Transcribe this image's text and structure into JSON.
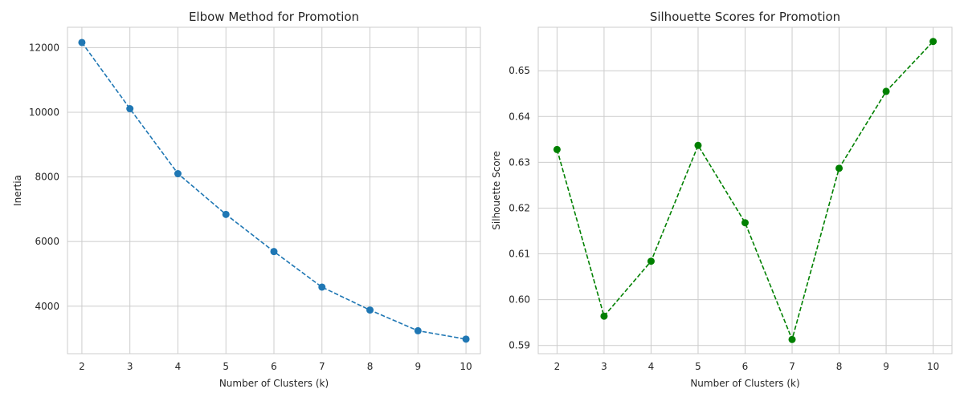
{
  "chart_data": [
    {
      "type": "line",
      "title": "Elbow Method for Promotion",
      "xlabel": "Number of Clusters (k)",
      "ylabel": "Inertia",
      "x": [
        2,
        3,
        4,
        5,
        6,
        7,
        8,
        9,
        10
      ],
      "xticks": [
        "2",
        "3",
        "4",
        "5",
        "6",
        "7",
        "8",
        "9",
        "10"
      ],
      "yticks": [
        "4000",
        "6000",
        "8000",
        "10000",
        "12000"
      ],
      "ytick_values": [
        4000,
        6000,
        8000,
        10000,
        12000
      ],
      "xlim": [
        1.7,
        10.3
      ],
      "ylim": [
        2530,
        12630
      ],
      "grid": true,
      "series": [
        {
          "values": [
            12160,
            10110,
            8100,
            6840,
            5690,
            4590,
            3880,
            3240,
            2980
          ],
          "color": "#1f77b4",
          "linestyle": "dashed",
          "marker": "circle"
        }
      ]
    },
    {
      "type": "line",
      "title": "Silhouette Scores for Promotion",
      "xlabel": "Number of Clusters (k)",
      "ylabel": "Silhouette Score",
      "x": [
        2,
        3,
        4,
        5,
        6,
        7,
        8,
        9,
        10
      ],
      "xticks": [
        "2",
        "3",
        "4",
        "5",
        "6",
        "7",
        "8",
        "9",
        "10"
      ],
      "yticks": [
        "0.59",
        "0.60",
        "0.61",
        "0.62",
        "0.63",
        "0.64",
        "0.65"
      ],
      "ytick_values": [
        0.59,
        0.6,
        0.61,
        0.62,
        0.63,
        0.64,
        0.65
      ],
      "xlim": [
        1.6,
        10.4
      ],
      "ylim": [
        0.5882,
        0.6595
      ],
      "grid": true,
      "series": [
        {
          "values": [
            0.6328,
            0.5964,
            0.6084,
            0.6337,
            0.6168,
            0.5913,
            0.6287,
            0.6455,
            0.6564
          ],
          "color": "#008000",
          "linestyle": "dashed",
          "marker": "circle"
        }
      ]
    }
  ]
}
